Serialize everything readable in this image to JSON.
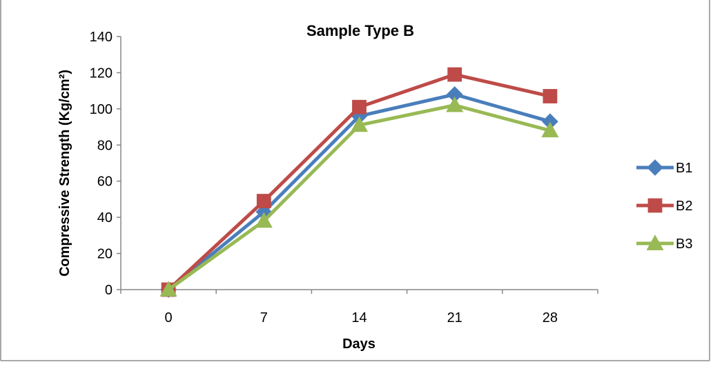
{
  "chart_data": {
    "type": "line",
    "title": "Sample Type B",
    "xlabel": "Days",
    "ylabel": "Compressive Strength (Kg/cm²)",
    "categories": [
      "0",
      "7",
      "14",
      "21",
      "28"
    ],
    "ylim": [
      0,
      140
    ],
    "yticks": [
      "0",
      "20",
      "40",
      "60",
      "80",
      "100",
      "120",
      "140"
    ],
    "grid": false,
    "legend_position": "right",
    "series": [
      {
        "name": "B1",
        "values": [
          0,
          43,
          96,
          108,
          93
        ],
        "color": "#4A7EBB",
        "marker": "diamond"
      },
      {
        "name": "B2",
        "values": [
          0,
          49,
          101,
          119,
          107
        ],
        "color": "#BE4B48",
        "marker": "square"
      },
      {
        "name": "B3",
        "values": [
          0,
          38,
          91,
          102,
          88
        ],
        "color": "#98B954",
        "marker": "triangle"
      }
    ]
  }
}
